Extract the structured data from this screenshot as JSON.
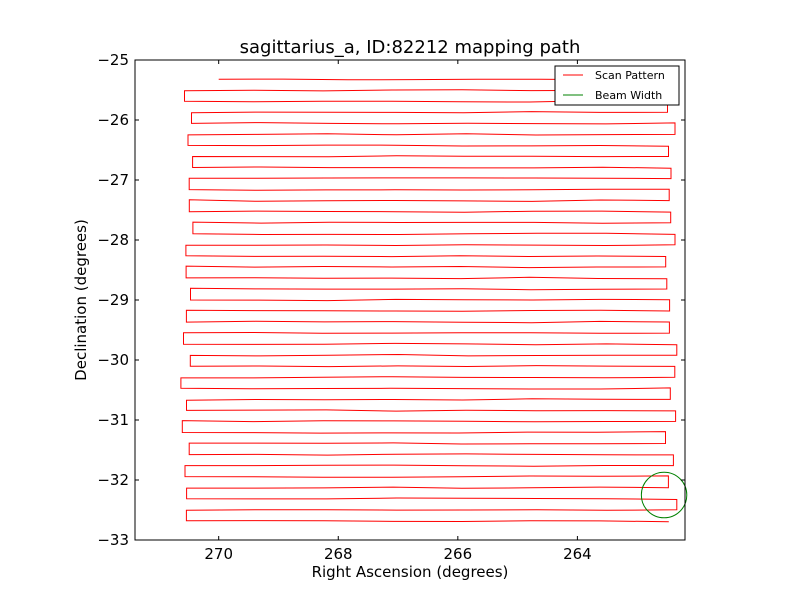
{
  "chart_data": {
    "type": "line",
    "title": "sagittarius_a, ID:82212 mapping path",
    "xlabel": "Right Ascension (degrees)",
    "ylabel": "Declination (degrees)",
    "xlim": [
      271.4,
      262.2
    ],
    "ylim": [
      -33,
      -25
    ],
    "x_ticks": [
      270,
      268,
      266,
      264
    ],
    "x_tick_labels": [
      "270",
      "268",
      "266",
      "264"
    ],
    "y_ticks": [
      -25,
      -26,
      -27,
      -28,
      -29,
      -30,
      -31,
      -32,
      -33
    ],
    "y_tick_labels": [
      "−25",
      "−26",
      "−27",
      "−28",
      "−29",
      "−30",
      "−31",
      "−32",
      "−33"
    ],
    "grid": false,
    "legend_position": "top-right",
    "series": [
      {
        "name": "Scan Pattern",
        "color": "#ff0000",
        "style": "raster",
        "x_west": 270.55,
        "x_east": 262.45,
        "start_x": 270.0,
        "dec_start": -25.32,
        "row_count": 41,
        "row_spacing": 0.184
      },
      {
        "name": "Beam Width",
        "color": "#008000",
        "style": "circle",
        "center_ra": 262.55,
        "center_dec": -32.25,
        "radius_deg": 0.38
      }
    ]
  }
}
